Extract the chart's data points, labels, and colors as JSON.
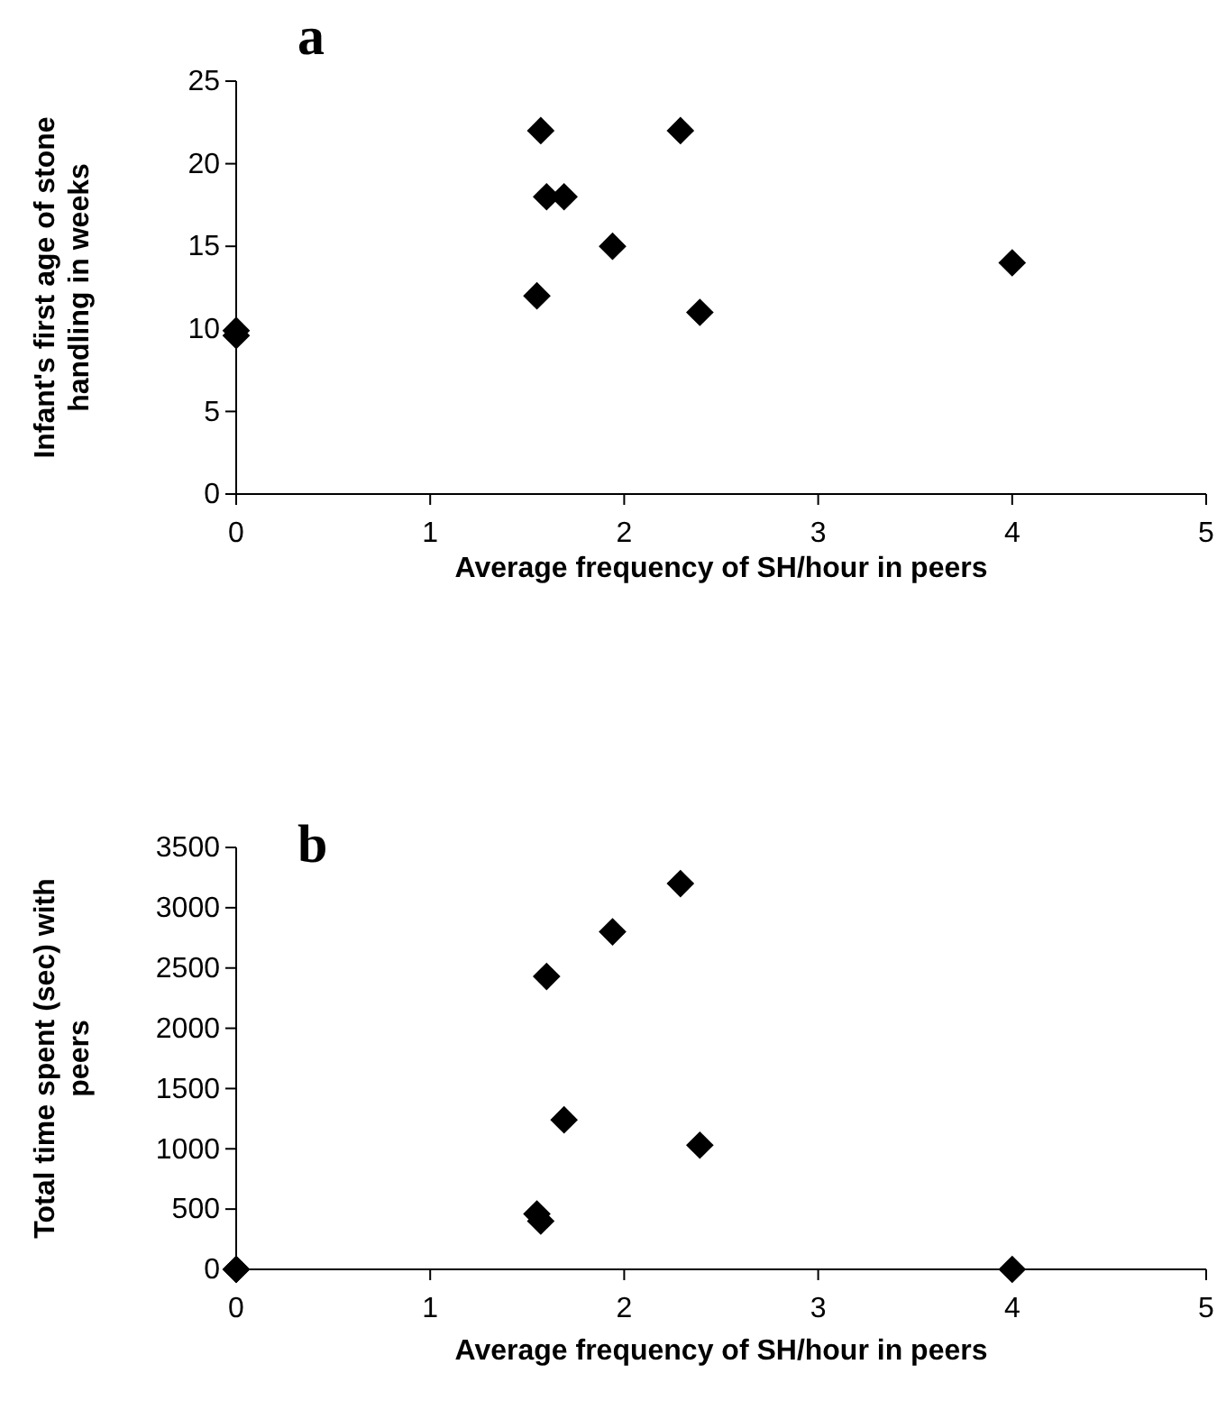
{
  "chart_data": [
    {
      "type": "scatter",
      "title": "a",
      "xlabel": "Average frequency of SH/hour in peers",
      "ylabel": "Infant's first age of stone handling in weeks",
      "x": [
        0,
        0,
        1.55,
        1.57,
        1.6,
        1.69,
        1.94,
        2.29,
        2.39,
        4
      ],
      "series": [
        {
          "color": "#000000",
          "values": [
            9.9,
            9.6,
            12,
            22,
            18,
            18,
            15,
            22,
            11,
            14
          ]
        }
      ],
      "xlim": [
        0,
        5
      ],
      "xticks": [
        0,
        1,
        2,
        3,
        4,
        5
      ],
      "ylim": [
        0,
        25
      ],
      "yticks": [
        0,
        5,
        10,
        15,
        20,
        25
      ],
      "marker": "diamond",
      "grid": false
    },
    {
      "type": "scatter",
      "title": "b",
      "xlabel": "Average frequency of SH/hour in peers",
      "ylabel": "Total time spent (sec) with peers",
      "x": [
        0,
        0,
        1.55,
        1.57,
        1.6,
        1.69,
        1.94,
        2.29,
        2.39,
        4
      ],
      "series": [
        {
          "color": "#000000",
          "values": [
            0,
            0,
            460,
            400,
            2430,
            1240,
            2800,
            3200,
            1030,
            0
          ]
        }
      ],
      "xlim": [
        0,
        5
      ],
      "xticks": [
        0,
        1,
        2,
        3,
        4,
        5
      ],
      "ylim": [
        0,
        3500
      ],
      "yticks": [
        0,
        500,
        1000,
        1500,
        2000,
        2500,
        3000,
        3500
      ],
      "marker": "diamond",
      "grid": false
    }
  ]
}
